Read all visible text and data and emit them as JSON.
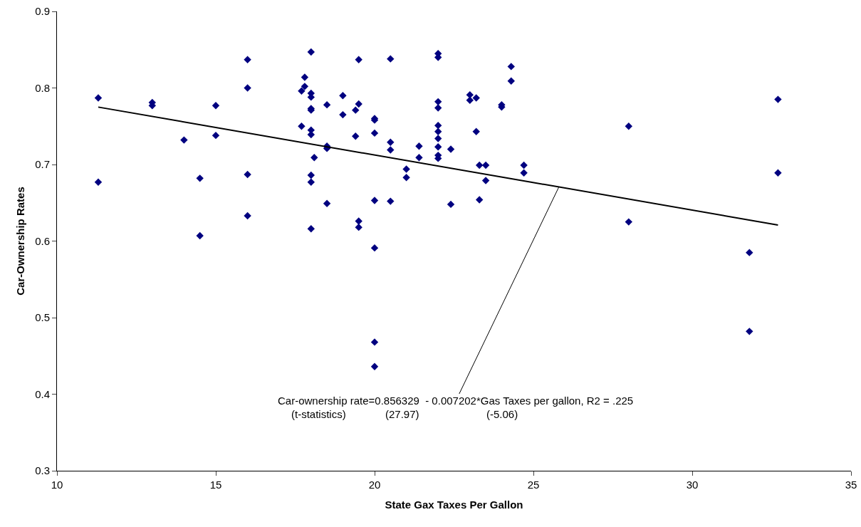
{
  "chart_data": {
    "type": "scatter",
    "xlabel": "State Gax Taxes Per Gallon",
    "ylabel": "Car-Ownership Rates",
    "xlim": [
      10,
      35
    ],
    "xticks": [
      10,
      15,
      20,
      25,
      30,
      35
    ],
    "ylim": [
      0.3,
      0.9
    ],
    "yticks": [
      0.3,
      0.4,
      0.5,
      0.6,
      0.7,
      0.8,
      0.9
    ],
    "grid": false,
    "marker": "diamond",
    "series": [
      {
        "color": "#000080",
        "x": [
          11.3,
          11.3,
          13,
          13,
          14,
          14.5,
          14.5,
          15,
          15,
          16,
          16,
          16,
          16,
          17.7,
          17.7,
          17.8,
          17.8,
          18,
          18,
          18,
          18,
          18,
          18,
          18,
          18.1,
          18,
          18,
          18,
          18.5,
          18.5,
          18.5,
          18.5,
          19,
          19,
          19.4,
          19.4,
          19.5,
          19.5,
          19.5,
          19.5,
          20,
          20,
          20,
          20,
          20,
          20,
          20,
          20.5,
          20.5,
          20.5,
          20.5,
          21,
          21,
          21.4,
          21.4,
          22,
          22,
          22,
          22,
          22,
          22,
          22,
          22,
          22,
          22,
          22.4,
          22.4,
          23,
          23,
          23.2,
          23.2,
          23.3,
          23.3,
          23.5,
          23.5,
          24,
          24,
          24.3,
          24.3,
          24.7,
          24.7,
          28,
          28,
          31.8,
          31.8,
          32.7,
          32.7
        ],
        "values": [
          0.787,
          0.677,
          0.781,
          0.777,
          0.732,
          0.682,
          0.607,
          0.777,
          0.738,
          0.837,
          0.8,
          0.687,
          0.633,
          0.796,
          0.75,
          0.814,
          0.802,
          0.847,
          0.793,
          0.788,
          0.773,
          0.771,
          0.745,
          0.739,
          0.709,
          0.686,
          0.677,
          0.616,
          0.778,
          0.724,
          0.721,
          0.649,
          0.79,
          0.765,
          0.771,
          0.737,
          0.837,
          0.779,
          0.626,
          0.618,
          0.76,
          0.758,
          0.741,
          0.653,
          0.591,
          0.468,
          0.436,
          0.838,
          0.729,
          0.719,
          0.652,
          0.694,
          0.683,
          0.724,
          0.709,
          0.845,
          0.84,
          0.782,
          0.774,
          0.751,
          0.743,
          0.734,
          0.723,
          0.712,
          0.708,
          0.72,
          0.648,
          0.791,
          0.784,
          0.787,
          0.743,
          0.699,
          0.654,
          0.699,
          0.679,
          0.778,
          0.775,
          0.828,
          0.809,
          0.699,
          0.689,
          0.75,
          0.625,
          0.585,
          0.482,
          0.785,
          0.689
        ]
      },
      {
        "type": "line",
        "marker": "none",
        "color": "#000000",
        "x": [
          11.3,
          32.7
        ],
        "values": [
          0.775,
          0.621
        ]
      }
    ],
    "annotations": [
      {
        "text": "Car-ownership rate=0.856329  - 0.007202*Gas Taxes per gallon, R2 = .225",
        "x": 25.8,
        "y": 0.6705
      },
      "(t-statistics)",
      "(27.97)",
      "(-5.06)"
    ]
  }
}
